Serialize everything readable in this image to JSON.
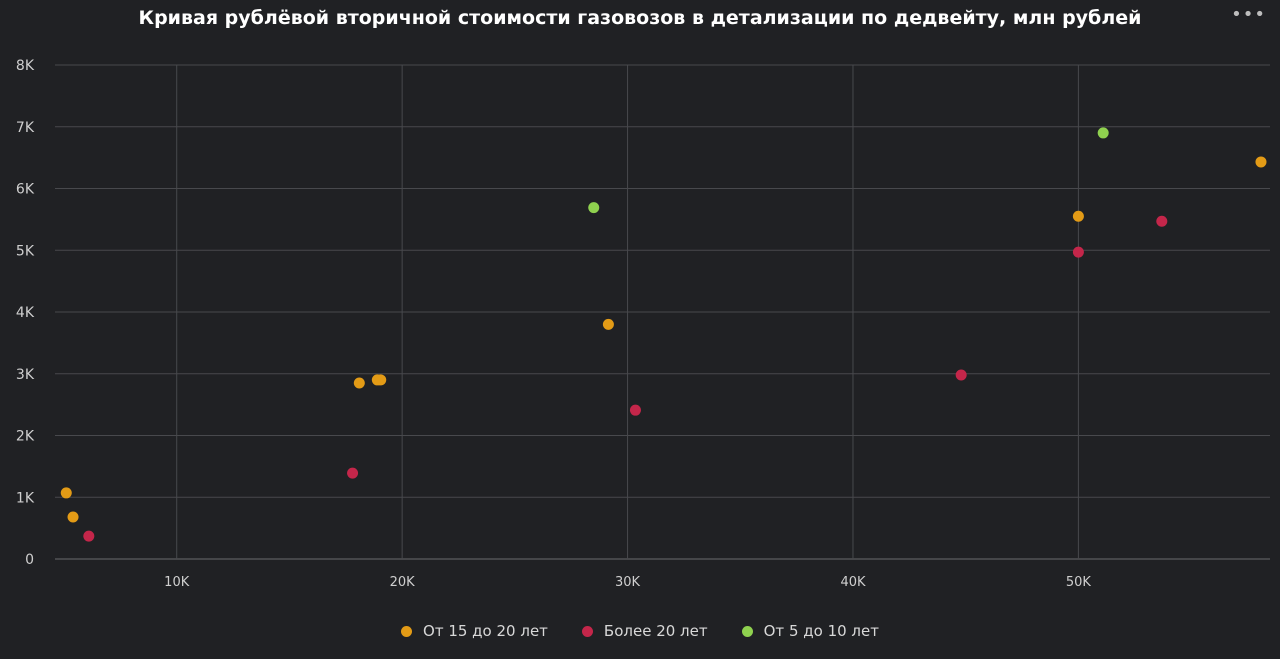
{
  "header": {
    "title": "Кривая рублёвой вторичной стоимости газовозов в детализации по дедвейту, млн рублей",
    "menu_icon": "more-horizontal-icon"
  },
  "chart_data": {
    "type": "scatter",
    "title": "Кривая рублёвой вторичной стоимости газовозов в детализации по дедвейту, млн рублей",
    "xlabel": "",
    "ylabel": "",
    "xlim": [
      4600,
      58500
    ],
    "ylim": [
      0,
      8000
    ],
    "x_ticks": [
      10000,
      20000,
      30000,
      40000,
      50000
    ],
    "x_tick_labels": [
      "10K",
      "20K",
      "30K",
      "40K",
      "50K"
    ],
    "y_ticks": [
      0,
      1000,
      2000,
      3000,
      4000,
      5000,
      6000,
      7000,
      8000
    ],
    "y_tick_labels": [
      "0",
      "1K",
      "2K",
      "3K",
      "4K",
      "5K",
      "6K",
      "7K",
      "8K"
    ],
    "grid": true,
    "legend_position": "bottom",
    "series": [
      {
        "name": "От 15 до 20 лет",
        "color": "#e39b16",
        "points": [
          {
            "x": 5100,
            "y": 1070
          },
          {
            "x": 5400,
            "y": 680
          },
          {
            "x": 18100,
            "y": 2850
          },
          {
            "x": 18900,
            "y": 2900
          },
          {
            "x": 19050,
            "y": 2900
          },
          {
            "x": 29150,
            "y": 3800
          },
          {
            "x": 50000,
            "y": 5550
          },
          {
            "x": 58100,
            "y": 6430
          }
        ]
      },
      {
        "name": "Более 20 лет",
        "color": "#c4264a",
        "points": [
          {
            "x": 6100,
            "y": 370
          },
          {
            "x": 17800,
            "y": 1390
          },
          {
            "x": 30350,
            "y": 2410
          },
          {
            "x": 44800,
            "y": 2980
          },
          {
            "x": 50000,
            "y": 4970
          },
          {
            "x": 53700,
            "y": 5470
          }
        ]
      },
      {
        "name": "От 5 до 10 лет",
        "color": "#8fd14f",
        "points": [
          {
            "x": 28500,
            "y": 5690
          },
          {
            "x": 51100,
            "y": 6900
          }
        ]
      }
    ]
  }
}
